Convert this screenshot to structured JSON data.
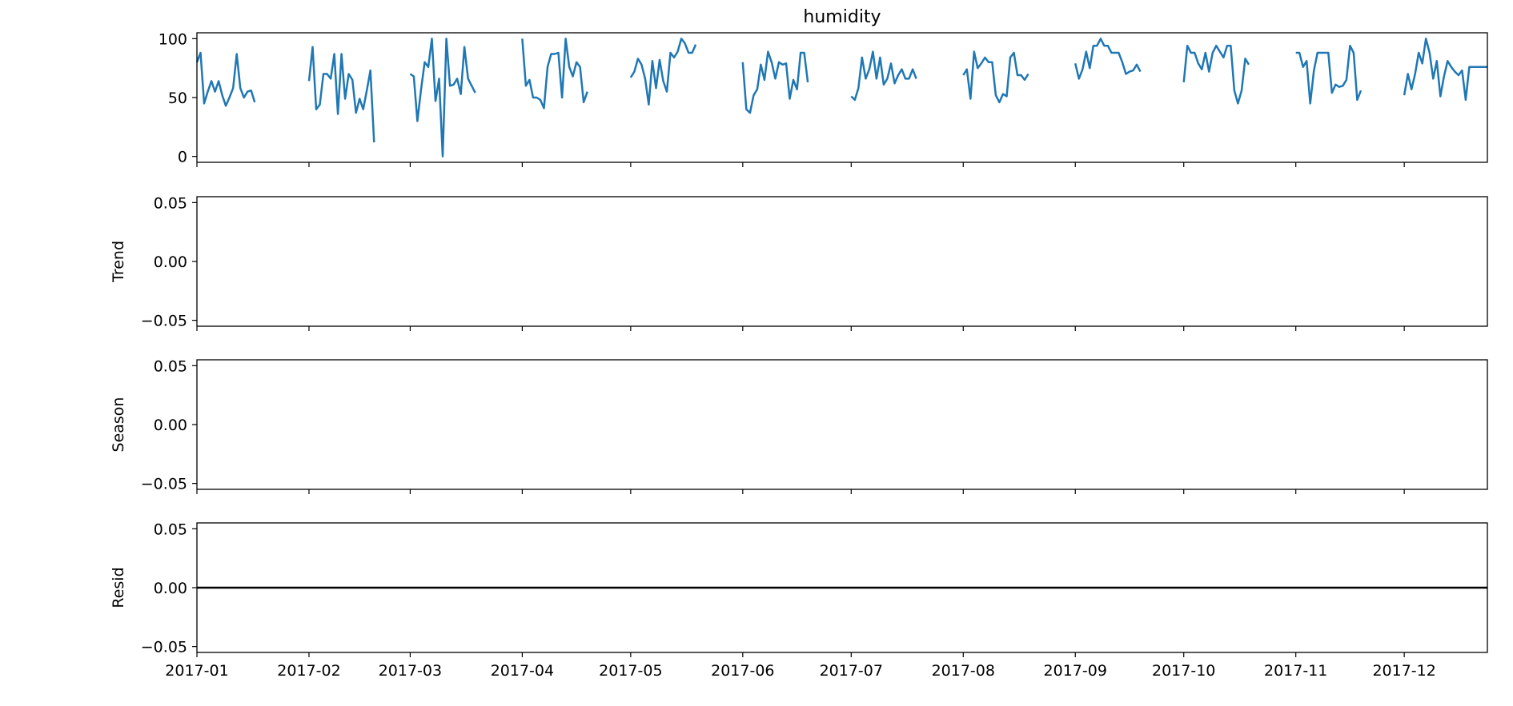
{
  "figure": {
    "title": "humidity",
    "line_color": "#1f77b4",
    "resid_line_color": "#000000"
  },
  "chart_data": [
    {
      "type": "line",
      "name": "observed",
      "title": "humidity",
      "ylabel": "",
      "ylim": [
        -5,
        105
      ],
      "yticks": [
        0,
        50,
        100
      ],
      "ytick_labels": [
        "0",
        "50",
        "100"
      ],
      "x_axis": "date",
      "xlim": [
        "2017-01-01",
        "2017-12-24"
      ],
      "grid": false,
      "segments": [
        {
          "x": [
            "2017-01-01",
            "2017-01-02",
            "2017-01-03",
            "2017-01-04",
            "2017-01-05",
            "2017-01-06",
            "2017-01-07",
            "2017-01-08",
            "2017-01-09",
            "2017-01-10",
            "2017-01-11",
            "2017-01-12",
            "2017-01-13",
            "2017-01-14",
            "2017-01-15",
            "2017-01-16",
            "2017-01-17"
          ],
          "y": [
            80,
            88,
            45,
            55,
            64,
            55,
            64,
            52,
            43,
            50,
            58,
            87,
            58,
            50,
            55,
            56,
            46
          ]
        },
        {
          "x": [
            "2017-02-01",
            "2017-02-02",
            "2017-02-03",
            "2017-02-04",
            "2017-02-05",
            "2017-02-06",
            "2017-02-07",
            "2017-02-08",
            "2017-02-09",
            "2017-02-10",
            "2017-02-11",
            "2017-02-12",
            "2017-02-13",
            "2017-02-14",
            "2017-02-15",
            "2017-02-16",
            "2017-02-17",
            "2017-02-18",
            "2017-02-19"
          ],
          "y": [
            64,
            93,
            40,
            44,
            70,
            70,
            66,
            87,
            36,
            87,
            49,
            70,
            65,
            37,
            49,
            40,
            56,
            73,
            12
          ]
        },
        {
          "x": [
            "2017-03-01",
            "2017-03-02",
            "2017-03-03",
            "2017-03-04",
            "2017-03-05",
            "2017-03-06",
            "2017-03-07",
            "2017-03-08",
            "2017-03-09",
            "2017-03-10",
            "2017-03-11",
            "2017-03-12",
            "2017-03-13",
            "2017-03-14",
            "2017-03-15",
            "2017-03-16",
            "2017-03-17",
            "2017-03-18",
            "2017-03-19"
          ],
          "y": [
            70,
            68,
            30,
            57,
            80,
            76,
            100,
            47,
            66,
            0,
            100,
            60,
            61,
            66,
            53,
            93,
            66,
            60,
            54
          ]
        },
        {
          "x": [
            "2017-04-01",
            "2017-04-02",
            "2017-04-03",
            "2017-04-04",
            "2017-04-05",
            "2017-04-06",
            "2017-04-07",
            "2017-04-08",
            "2017-04-09",
            "2017-04-10",
            "2017-04-11",
            "2017-04-12",
            "2017-04-13",
            "2017-04-14",
            "2017-04-15",
            "2017-04-16",
            "2017-04-17",
            "2017-04-18",
            "2017-04-19"
          ],
          "y": [
            100,
            60,
            65,
            50,
            50,
            48,
            41,
            76,
            87,
            87,
            88,
            50,
            100,
            76,
            68,
            80,
            76,
            46,
            55
          ]
        },
        {
          "x": [
            "2017-05-01",
            "2017-05-02",
            "2017-05-03",
            "2017-05-04",
            "2017-05-05",
            "2017-05-06",
            "2017-05-07",
            "2017-05-08",
            "2017-05-09",
            "2017-05-10",
            "2017-05-11",
            "2017-05-12",
            "2017-05-13",
            "2017-05-14",
            "2017-05-15",
            "2017-05-16",
            "2017-05-17",
            "2017-05-18",
            "2017-05-19"
          ],
          "y": [
            67,
            72,
            83,
            78,
            66,
            44,
            81,
            58,
            82,
            64,
            55,
            88,
            84,
            89,
            100,
            96,
            88,
            88,
            95
          ]
        },
        {
          "x": [
            "2017-06-01",
            "2017-06-02",
            "2017-06-03",
            "2017-06-04",
            "2017-06-05",
            "2017-06-06",
            "2017-06-07",
            "2017-06-08",
            "2017-06-09",
            "2017-06-10",
            "2017-06-11",
            "2017-06-12",
            "2017-06-13",
            "2017-06-14",
            "2017-06-15",
            "2017-06-16",
            "2017-06-17",
            "2017-06-18",
            "2017-06-19"
          ],
          "y": [
            80,
            40,
            37,
            52,
            57,
            78,
            65,
            89,
            80,
            66,
            80,
            78,
            79,
            49,
            65,
            57,
            88,
            88,
            63
          ]
        },
        {
          "x": [
            "2017-07-01",
            "2017-07-02",
            "2017-07-03",
            "2017-07-04",
            "2017-07-05",
            "2017-07-06",
            "2017-07-07",
            "2017-07-08",
            "2017-07-09",
            "2017-07-10",
            "2017-07-11",
            "2017-07-12",
            "2017-07-13",
            "2017-07-14",
            "2017-07-15",
            "2017-07-16",
            "2017-07-17",
            "2017-07-18",
            "2017-07-19"
          ],
          "y": [
            51,
            48,
            58,
            84,
            66,
            74,
            89,
            66,
            84,
            61,
            66,
            79,
            62,
            69,
            74,
            66,
            66,
            74,
            66
          ]
        },
        {
          "x": [
            "2017-08-01",
            "2017-08-02",
            "2017-08-03",
            "2017-08-04",
            "2017-08-05",
            "2017-08-06",
            "2017-08-07",
            "2017-08-08",
            "2017-08-09",
            "2017-08-10",
            "2017-08-11",
            "2017-08-12",
            "2017-08-13",
            "2017-08-14",
            "2017-08-15",
            "2017-08-16",
            "2017-08-17",
            "2017-08-18",
            "2017-08-19"
          ],
          "y": [
            69,
            74,
            49,
            89,
            75,
            79,
            84,
            80,
            80,
            52,
            46,
            53,
            51,
            84,
            88,
            69,
            69,
            65,
            70
          ]
        },
        {
          "x": [
            "2017-09-01",
            "2017-09-02",
            "2017-09-03",
            "2017-09-04",
            "2017-09-05",
            "2017-09-06",
            "2017-09-07",
            "2017-09-08",
            "2017-09-09",
            "2017-09-10",
            "2017-09-11",
            "2017-09-12",
            "2017-09-13",
            "2017-09-14",
            "2017-09-15",
            "2017-09-16",
            "2017-09-17",
            "2017-09-18",
            "2017-09-19"
          ],
          "y": [
            79,
            66,
            74,
            89,
            75,
            94,
            94,
            100,
            94,
            94,
            88,
            88,
            88,
            80,
            70,
            72,
            73,
            78,
            72
          ]
        },
        {
          "x": [
            "2017-10-01",
            "2017-10-02",
            "2017-10-03",
            "2017-10-04",
            "2017-10-05",
            "2017-10-06",
            "2017-10-07",
            "2017-10-08",
            "2017-10-09",
            "2017-10-10",
            "2017-10-11",
            "2017-10-12",
            "2017-10-13",
            "2017-10-14",
            "2017-10-15",
            "2017-10-16",
            "2017-10-17",
            "2017-10-18",
            "2017-10-19"
          ],
          "y": [
            63,
            94,
            88,
            88,
            79,
            74,
            88,
            72,
            88,
            94,
            89,
            84,
            94,
            94,
            56,
            45,
            56,
            83,
            78
          ]
        },
        {
          "x": [
            "2017-11-01",
            "2017-11-02",
            "2017-11-03",
            "2017-11-04",
            "2017-11-05",
            "2017-11-06",
            "2017-11-07",
            "2017-11-08",
            "2017-11-09",
            "2017-11-10",
            "2017-11-11",
            "2017-11-12",
            "2017-11-13",
            "2017-11-14",
            "2017-11-15",
            "2017-11-16",
            "2017-11-17",
            "2017-11-18",
            "2017-11-19"
          ],
          "y": [
            88,
            88,
            76,
            81,
            45,
            73,
            88,
            88,
            88,
            88,
            54,
            61,
            59,
            60,
            65,
            94,
            88,
            48,
            56
          ]
        },
        {
          "x": [
            "2017-12-01",
            "2017-12-02",
            "2017-12-03",
            "2017-12-04",
            "2017-12-05",
            "2017-12-06",
            "2017-12-07",
            "2017-12-08",
            "2017-12-09",
            "2017-12-10",
            "2017-12-11",
            "2017-12-12",
            "2017-12-13",
            "2017-12-14",
            "2017-12-15",
            "2017-12-16",
            "2017-12-17",
            "2017-12-18",
            "2017-12-19",
            "2017-12-20",
            "2017-12-21",
            "2017-12-22",
            "2017-12-23",
            "2017-12-24"
          ],
          "y": [
            52,
            70,
            57,
            70,
            88,
            79,
            100,
            88,
            66,
            81,
            51,
            68,
            81,
            76,
            72,
            69,
            73,
            48,
            76,
            76,
            76,
            76,
            76,
            76
          ]
        }
      ]
    },
    {
      "type": "line",
      "name": "trend",
      "title": "",
      "ylabel": "Trend",
      "ylim": [
        -0.055,
        0.055
      ],
      "yticks": [
        0.05,
        0.0,
        -0.05
      ],
      "ytick_labels": [
        "0.05",
        "0.00",
        "−0.05"
      ],
      "x_axis": "date",
      "xlim": [
        "2017-01-01",
        "2017-12-24"
      ],
      "grid": false,
      "segments": []
    },
    {
      "type": "line",
      "name": "seasonal",
      "title": "",
      "ylabel": "Season",
      "ylim": [
        -0.055,
        0.055
      ],
      "yticks": [
        0.05,
        0.0,
        -0.05
      ],
      "ytick_labels": [
        "0.05",
        "0.00",
        "−0.05"
      ],
      "x_axis": "date",
      "xlim": [
        "2017-01-01",
        "2017-12-24"
      ],
      "grid": false,
      "segments": []
    },
    {
      "type": "line",
      "name": "resid",
      "title": "",
      "ylabel": "Resid",
      "ylim": [
        -0.055,
        0.055
      ],
      "yticks": [
        0.05,
        0.0,
        -0.05
      ],
      "ytick_labels": [
        "0.05",
        "0.00",
        "−0.05"
      ],
      "x_axis": "date",
      "xlim": [
        "2017-01-01",
        "2017-12-24"
      ],
      "grid": false,
      "hline": 0.0,
      "segments": []
    }
  ],
  "xaxis": {
    "ticks": [
      "2017-01-01",
      "2017-02-01",
      "2017-03-01",
      "2017-04-01",
      "2017-05-01",
      "2017-06-01",
      "2017-07-01",
      "2017-08-01",
      "2017-09-01",
      "2017-10-01",
      "2017-11-01",
      "2017-12-01"
    ],
    "tick_labels": [
      "2017-01",
      "2017-02",
      "2017-03",
      "2017-04",
      "2017-05",
      "2017-06",
      "2017-07",
      "2017-08",
      "2017-09",
      "2017-10",
      "2017-11",
      "2017-12"
    ]
  }
}
